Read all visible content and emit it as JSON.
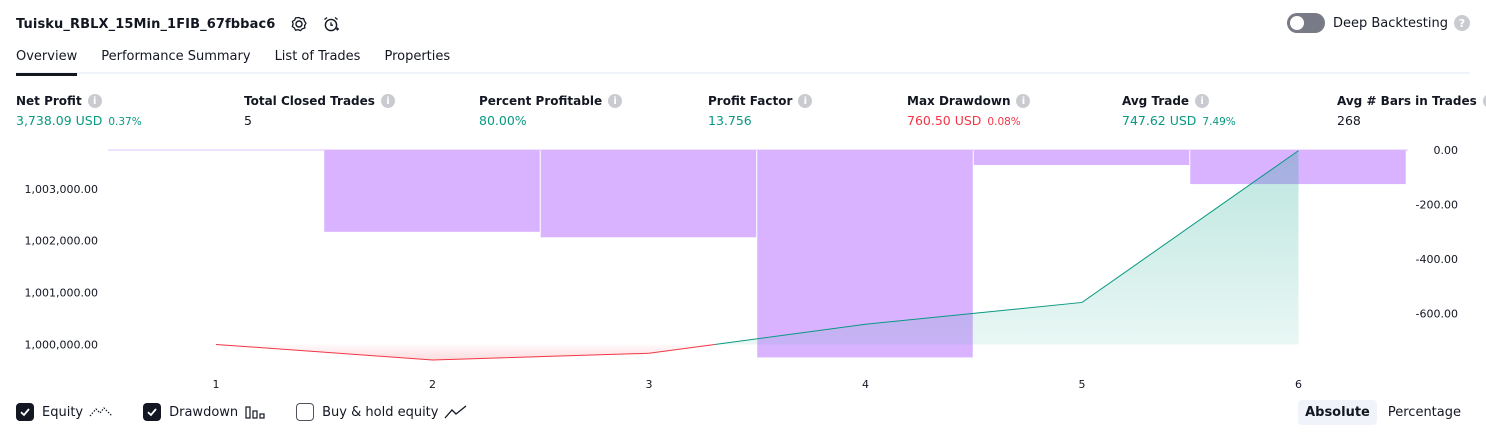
{
  "header": {
    "strategy_name": "Tuisku_RBLX_15Min_1FIB_67fbbac6",
    "deep_backtesting_label": "Deep Backtesting",
    "deep_backtesting_enabled": false
  },
  "tabs": [
    {
      "label": "Overview",
      "active": true
    },
    {
      "label": "Performance Summary",
      "active": false
    },
    {
      "label": "List of Trades",
      "active": false
    },
    {
      "label": "Properties",
      "active": false
    }
  ],
  "metrics": {
    "net_profit": {
      "label": "Net Profit",
      "value": "3,738.09 USD",
      "pct": "0.37%"
    },
    "total_closed_trades": {
      "label": "Total Closed Trades",
      "value": "5"
    },
    "percent_profitable": {
      "label": "Percent Profitable",
      "value": "80.00%"
    },
    "profit_factor": {
      "label": "Profit Factor",
      "value": "13.756"
    },
    "max_drawdown": {
      "label": "Max Drawdown",
      "value": "760.50 USD",
      "pct": "0.08%"
    },
    "avg_trade": {
      "label": "Avg Trade",
      "value": "747.62 USD",
      "pct": "7.49%"
    },
    "avg_bars_in_trades": {
      "label": "Avg # Bars in Trades",
      "value": "268"
    }
  },
  "chart_data": {
    "type": "line",
    "x": [
      1,
      2,
      3,
      4,
      5,
      6
    ],
    "x_ticks": [
      "1",
      "2",
      "3",
      "4",
      "5",
      "6"
    ],
    "left_axis": {
      "ticks": [
        "1,000,000.00",
        "1,001,000.00",
        "1,002,000.00",
        "1,003,000.00"
      ],
      "tick_values": [
        1000000,
        1001000,
        1002000,
        1003000
      ],
      "ylim": [
        999700,
        1003750
      ]
    },
    "right_axis": {
      "ticks": [
        "0.00",
        "-200.00",
        "-400.00",
        "-600.00"
      ],
      "tick_values": [
        0,
        -200,
        -400,
        -600
      ],
      "ylim": [
        -770,
        0
      ]
    },
    "series": [
      {
        "name": "Equity",
        "values": [
          1000000,
          999700,
          999830,
          1000390,
          1000810,
          1003738.09
        ],
        "color_negative": "#f23645",
        "color_positive": "#089981",
        "fill_positive": "#c9ece4"
      },
      {
        "name": "Drawdown",
        "type": "bar",
        "bars": [
          {
            "x": 2,
            "value": -300
          },
          {
            "x": 3,
            "value": -320
          },
          {
            "x": 4,
            "value": -760.5
          },
          {
            "x": 5,
            "value": -55
          },
          {
            "x": 6,
            "value": -125
          }
        ],
        "color": "#d9b3ff"
      }
    ]
  },
  "legend": {
    "equity": {
      "label": "Equity",
      "checked": true
    },
    "drawdown": {
      "label": "Drawdown",
      "checked": true
    },
    "buy_hold": {
      "label": "Buy & hold equity",
      "checked": false
    }
  },
  "view_mode": {
    "absolute_label": "Absolute",
    "percentage_label": "Percentage",
    "active": "absolute"
  }
}
